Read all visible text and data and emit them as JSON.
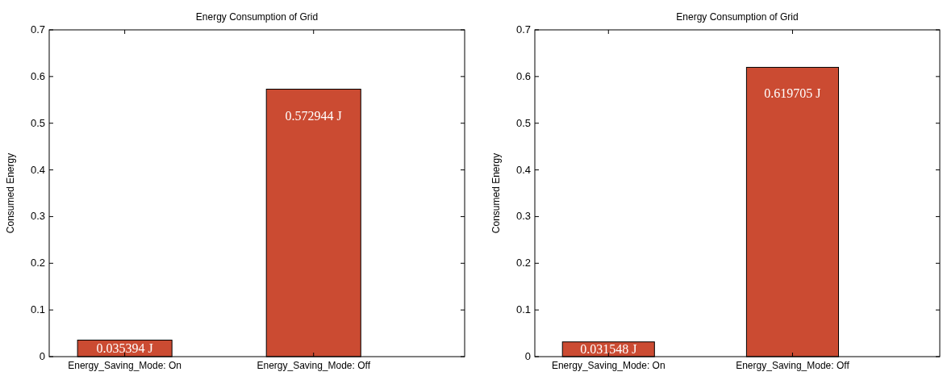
{
  "chart_data": [
    {
      "type": "bar",
      "title": "Energy Consumption of Grid",
      "ylabel": "Consumed Energy",
      "categories": [
        "Energy_Saving_Mode: On",
        "Energy_Saving_Mode: Off"
      ],
      "values": [
        0.035394,
        0.572944
      ],
      "value_labels": [
        "0.035394 J",
        "0.572944 J"
      ],
      "color": "#cb4b32",
      "ylim": [
        0,
        0.7
      ],
      "yticks": [
        0,
        0.1,
        0.2,
        0.3,
        0.4,
        0.5,
        0.6,
        0.7
      ]
    },
    {
      "type": "bar",
      "title": "Energy Consumption of Grid",
      "ylabel": "Consumed Energy",
      "categories": [
        "Energy_Saving_Mode: On",
        "Energy_Saving_Mode: Off"
      ],
      "values": [
        0.031548,
        0.619705
      ],
      "value_labels": [
        "0.031548 J",
        "0.619705 J"
      ],
      "color": "#cb4b32",
      "ylim": [
        0,
        0.7
      ],
      "yticks": [
        0,
        0.1,
        0.2,
        0.3,
        0.4,
        0.5,
        0.6,
        0.7
      ]
    }
  ]
}
